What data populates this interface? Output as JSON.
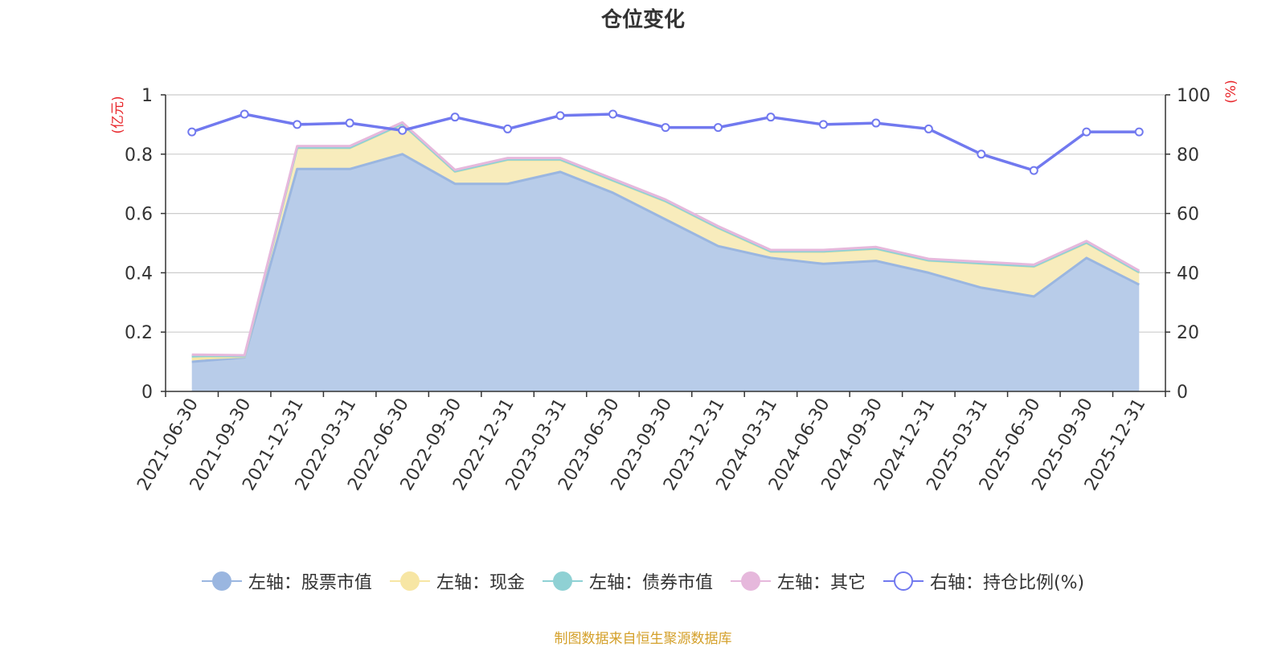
{
  "colors": {
    "stock": "#9ab6e0",
    "stock_fill": "#b8cce9",
    "cash": "#f7e6a4",
    "cash_fill": "#f8ecbc",
    "bond": "#8fd1d4",
    "other": "#e6b8dc",
    "ratio": "#7179ef",
    "axis_unit": "#e8262b",
    "grid": "#cccccc",
    "text": "#333333",
    "source": "#d4a02a"
  },
  "chart_data": {
    "type": "area",
    "title": "仓位变化",
    "left_axis_unit": "(亿元)",
    "right_axis_unit": "(%)",
    "categories": [
      "2021-06-30",
      "2021-09-30",
      "2021-12-31",
      "2022-03-31",
      "2022-06-30",
      "2022-09-30",
      "2022-12-31",
      "2023-03-31",
      "2023-06-30",
      "2023-09-30",
      "2023-12-31",
      "2024-03-31",
      "2024-06-30",
      "2024-09-30",
      "2024-12-31",
      "2025-03-31",
      "2025-06-30",
      "2025-09-30",
      "2025-12-31"
    ],
    "ylim_left": [
      0,
      1
    ],
    "yticks_left": [
      "0",
      "0.2",
      "0.4",
      "0.6",
      "0.8",
      "1"
    ],
    "ylim_right": [
      0,
      100
    ],
    "yticks_right": [
      "0",
      "20",
      "40",
      "60",
      "80",
      "100"
    ],
    "series": [
      {
        "name": "左轴：股票市值",
        "axis": "left",
        "stack": true,
        "values": [
          0.1,
          0.115,
          0.75,
          0.75,
          0.8,
          0.7,
          0.7,
          0.74,
          0.67,
          0.58,
          0.49,
          0.45,
          0.43,
          0.44,
          0.4,
          0.35,
          0.32,
          0.45,
          0.36
        ]
      },
      {
        "name": "左轴：现金",
        "axis": "left",
        "stack": true,
        "values": [
          0.01,
          0.002,
          0.07,
          0.07,
          0.1,
          0.04,
          0.08,
          0.04,
          0.04,
          0.06,
          0.06,
          0.02,
          0.04,
          0.04,
          0.04,
          0.08,
          0.1,
          0.05,
          0.04
        ]
      },
      {
        "name": "左轴：债券市值",
        "axis": "left",
        "stack": true,
        "values": [
          0.01,
          0.002,
          0.002,
          0.002,
          0.002,
          0.002,
          0.002,
          0.002,
          0.002,
          0.002,
          0.002,
          0.002,
          0.002,
          0.002,
          0.002,
          0.002,
          0.002,
          0.002,
          0.002
        ]
      },
      {
        "name": "左轴：其它",
        "axis": "left",
        "stack": true,
        "values": [
          0.004,
          0.003,
          0.005,
          0.005,
          0.005,
          0.005,
          0.005,
          0.005,
          0.005,
          0.005,
          0.005,
          0.005,
          0.005,
          0.005,
          0.005,
          0.005,
          0.005,
          0.005,
          0.005
        ]
      },
      {
        "name": "右轴：持仓比例(%)",
        "axis": "right",
        "stack": false,
        "values": [
          87.5,
          93.5,
          90,
          90.5,
          88,
          92.5,
          88.5,
          93,
          93.5,
          89,
          89,
          92.5,
          90,
          90.5,
          88.5,
          80,
          74.5,
          87.5,
          87.5
        ]
      }
    ]
  },
  "legend": [
    {
      "label": "左轴：股票市值",
      "color_key": "stock",
      "hollow": false
    },
    {
      "label": "左轴：现金",
      "color_key": "cash",
      "hollow": false
    },
    {
      "label": "左轴：债券市值",
      "color_key": "bond",
      "hollow": false
    },
    {
      "label": "左轴：其它",
      "color_key": "other",
      "hollow": false
    },
    {
      "label": "右轴：持仓比例(%)",
      "color_key": "ratio",
      "hollow": true
    }
  ],
  "footer": "制图数据来自恒生聚源数据库"
}
